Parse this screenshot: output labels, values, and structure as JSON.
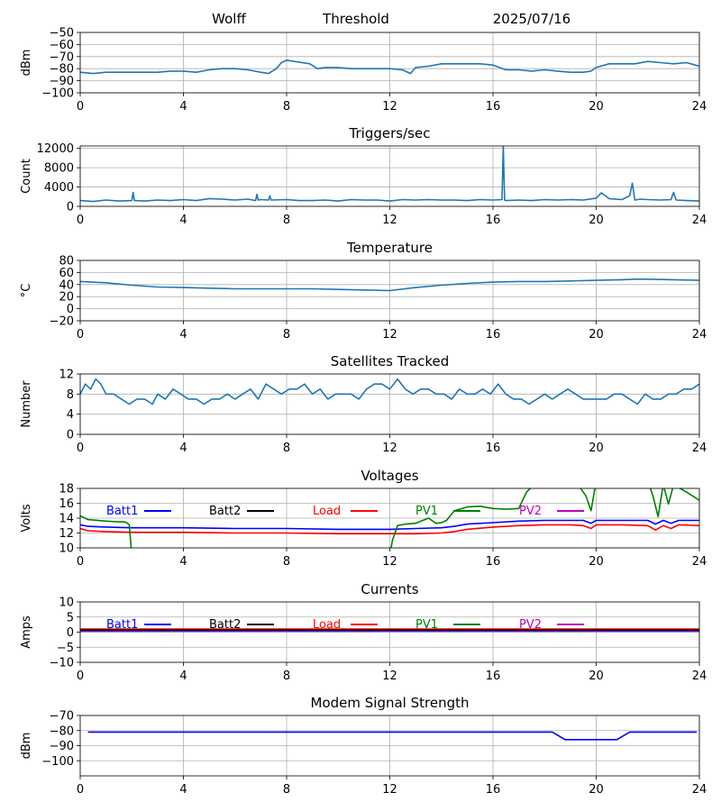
{
  "header": {
    "station": "Wolff",
    "mode": "Threshold",
    "date": "2025/07/16"
  },
  "colors": {
    "default": "#1f77b4",
    "batt1": "#0000ff",
    "batt2": "#000000",
    "load": "#ff0000",
    "pv1": "#008000",
    "pv2": "#bf00bf",
    "modem": "#0000ff"
  },
  "chart_data": [
    {
      "type": "line",
      "title": "",
      "ylabel": "dBm",
      "ylim": [
        -100,
        -50
      ],
      "yticks": [
        -100,
        -90,
        -80,
        -70,
        -60,
        -50
      ],
      "xlim": [
        0,
        24
      ],
      "xticks": [
        0,
        4,
        8,
        12,
        16,
        20,
        24
      ],
      "grid": true,
      "series": [
        {
          "color": "#1f77b4",
          "x": [
            0,
            0.5,
            1,
            2,
            3,
            3.5,
            4,
            4.5,
            5,
            5.5,
            6,
            6.5,
            7,
            7.3,
            7.6,
            7.8,
            8,
            8.3,
            8.6,
            8.9,
            9.2,
            9.5,
            10,
            10.5,
            11,
            11.5,
            12,
            12.5,
            12.8,
            13,
            13.5,
            14,
            14.5,
            15,
            15.5,
            16,
            16.5,
            17,
            17.5,
            18,
            18.5,
            19,
            19.5,
            19.8,
            20,
            20.5,
            21,
            21.5,
            22,
            22.5,
            23,
            23.5,
            24
          ],
          "y": [
            -83,
            -84,
            -83,
            -83,
            -83,
            -82,
            -82,
            -83,
            -81,
            -80,
            -80,
            -81,
            -83,
            -84,
            -80,
            -75,
            -73,
            -74,
            -75,
            -76,
            -80,
            -79,
            -79,
            -80,
            -80,
            -80,
            -80,
            -81,
            -84,
            -79,
            -78,
            -76,
            -76,
            -76,
            -76,
            -77,
            -81,
            -81,
            -82,
            -81,
            -82,
            -83,
            -83,
            -82,
            -79,
            -76,
            -76,
            -76,
            -74,
            -75,
            -76,
            -75,
            -78
          ]
        }
      ]
    },
    {
      "type": "line",
      "title": "Triggers/sec",
      "ylabel": "Count",
      "ylim": [
        0,
        12500
      ],
      "yticks": [
        0,
        4000,
        8000,
        12000
      ],
      "xlim": [
        0,
        24
      ],
      "xticks": [
        0,
        4,
        8,
        12,
        16,
        20,
        24
      ],
      "grid": true,
      "series": [
        {
          "color": "#1f77b4",
          "x": [
            0,
            0.5,
            1,
            1.5,
            2,
            2.05,
            2.1,
            2.5,
            3,
            3.5,
            4,
            4.5,
            5,
            5.5,
            6,
            6.5,
            6.8,
            6.85,
            6.9,
            7,
            7.3,
            7.35,
            7.4,
            8,
            8.5,
            9,
            9.5,
            10,
            10.5,
            11,
            11.5,
            12,
            12.5,
            13,
            13.5,
            14,
            14.5,
            15,
            15.5,
            16,
            16.35,
            16.4,
            16.45,
            16.5,
            17,
            17.5,
            18,
            18.5,
            19,
            19.5,
            20,
            20.2,
            20.5,
            21,
            21.3,
            21.4,
            21.5,
            21.7,
            22,
            22.5,
            22.9,
            23,
            23.1,
            23.5,
            24
          ],
          "y": [
            1200,
            1000,
            1300,
            1100,
            1200,
            2900,
            1200,
            1100,
            1300,
            1200,
            1400,
            1200,
            1600,
            1500,
            1300,
            1500,
            1200,
            2500,
            1300,
            1400,
            1300,
            2200,
            1300,
            1400,
            1200,
            1200,
            1300,
            1100,
            1400,
            1300,
            1300,
            1100,
            1400,
            1300,
            1400,
            1300,
            1300,
            1200,
            1400,
            1300,
            1400,
            12400,
            1300,
            1200,
            1300,
            1200,
            1400,
            1300,
            1400,
            1300,
            1700,
            2800,
            1600,
            1400,
            2200,
            4800,
            1300,
            1500,
            1400,
            1300,
            1400,
            2900,
            1300,
            1200,
            1100
          ]
        }
      ]
    },
    {
      "type": "line",
      "title": "Temperature",
      "ylabel": "°C",
      "ylim": [
        -20,
        80
      ],
      "yticks": [
        -20,
        0,
        20,
        40,
        60,
        80
      ],
      "xlim": [
        0,
        24
      ],
      "xticks": [
        0,
        4,
        8,
        12,
        16,
        20,
        24
      ],
      "grid": true,
      "series": [
        {
          "color": "#1f77b4",
          "x": [
            0,
            1,
            2,
            3,
            4,
            5,
            6,
            7,
            8,
            9,
            10,
            11,
            12,
            13,
            14,
            15,
            16,
            17,
            18,
            19,
            20,
            21,
            21.5,
            22,
            23,
            24
          ],
          "y": [
            45,
            43,
            39,
            36,
            35,
            34,
            33,
            33,
            33,
            33,
            32,
            31,
            30,
            35,
            39,
            42,
            44,
            45,
            45,
            46,
            47,
            48,
            49,
            49,
            48,
            47
          ]
        }
      ]
    },
    {
      "type": "line",
      "title": "Satellites Tracked",
      "ylabel": "Number",
      "ylim": [
        0,
        12
      ],
      "yticks": [
        0,
        4,
        8,
        12
      ],
      "xlim": [
        0,
        24
      ],
      "xticks": [
        0,
        4,
        8,
        12,
        16,
        20,
        24
      ],
      "grid": true,
      "series": [
        {
          "color": "#1f77b4",
          "x": [
            0,
            0.2,
            0.4,
            0.6,
            0.8,
            1,
            1.3,
            1.6,
            1.9,
            2.2,
            2.5,
            2.8,
            3,
            3.3,
            3.6,
            3.9,
            4.2,
            4.5,
            4.8,
            5.1,
            5.4,
            5.7,
            6,
            6.3,
            6.6,
            6.9,
            7.2,
            7.5,
            7.8,
            8.1,
            8.4,
            8.7,
            9,
            9.3,
            9.6,
            9.9,
            10.2,
            10.5,
            10.8,
            11.1,
            11.4,
            11.7,
            12,
            12.3,
            12.6,
            12.9,
            13.2,
            13.5,
            13.8,
            14.1,
            14.4,
            14.7,
            15,
            15.3,
            15.6,
            15.9,
            16.2,
            16.5,
            16.8,
            17.1,
            17.4,
            17.7,
            18,
            18.3,
            18.6,
            18.9,
            19.2,
            19.5,
            19.8,
            20.1,
            20.4,
            20.7,
            21,
            21.3,
            21.6,
            21.9,
            22.2,
            22.5,
            22.8,
            23.1,
            23.4,
            23.7,
            24
          ],
          "y": [
            8,
            10,
            9,
            11,
            10,
            8,
            8,
            7,
            6,
            7,
            7,
            6,
            8,
            7,
            9,
            8,
            7,
            7,
            6,
            7,
            7,
            8,
            7,
            8,
            9,
            7,
            10,
            9,
            8,
            9,
            9,
            10,
            8,
            9,
            7,
            8,
            8,
            8,
            7,
            9,
            10,
            10,
            9,
            11,
            9,
            8,
            9,
            9,
            8,
            8,
            7,
            9,
            8,
            8,
            9,
            8,
            10,
            8,
            7,
            7,
            6,
            7,
            8,
            7,
            8,
            9,
            8,
            7,
            7,
            7,
            7,
            8,
            8,
            7,
            6,
            8,
            7,
            7,
            8,
            8,
            9,
            9,
            10
          ]
        }
      ]
    },
    {
      "type": "line",
      "title": "Voltages",
      "ylabel": "Volts",
      "ylim": [
        10,
        18
      ],
      "yticks": [
        10,
        12,
        14,
        16,
        18
      ],
      "xlim": [
        0,
        24
      ],
      "xticks": [
        0,
        4,
        8,
        12,
        16,
        20,
        24
      ],
      "grid": true,
      "legend": {
        "position": "top",
        "entries": [
          "Batt1",
          "Batt2",
          "Load",
          "PV1",
          "PV2"
        ]
      },
      "series": [
        {
          "name": "Batt1",
          "color": "#0000ff",
          "x": [
            0,
            0.3,
            1,
            2,
            4,
            6,
            8,
            10,
            12,
            13,
            14,
            14.5,
            15,
            16,
            17,
            18,
            19,
            19.5,
            19.8,
            20,
            21,
            22,
            22.3,
            22.6,
            22.9,
            23.2,
            24
          ],
          "y": [
            13.1,
            12.9,
            12.8,
            12.7,
            12.7,
            12.6,
            12.6,
            12.5,
            12.5,
            12.6,
            12.7,
            12.9,
            13.2,
            13.4,
            13.6,
            13.7,
            13.7,
            13.7,
            13.3,
            13.7,
            13.7,
            13.7,
            13.2,
            13.7,
            13.3,
            13.7,
            13.7
          ]
        },
        {
          "name": "Load",
          "color": "#ff0000",
          "x": [
            0,
            0.3,
            1,
            2,
            4,
            6,
            8,
            10,
            12,
            13,
            14,
            14.5,
            15,
            16,
            17,
            18,
            19,
            19.5,
            19.8,
            20,
            21,
            22,
            22.3,
            22.6,
            22.9,
            23.2,
            24
          ],
          "y": [
            12.6,
            12.3,
            12.2,
            12.1,
            12.1,
            12.0,
            12.0,
            11.9,
            11.9,
            11.9,
            12.0,
            12.2,
            12.5,
            12.8,
            13.0,
            13.1,
            13.1,
            13.0,
            12.6,
            13.1,
            13.1,
            13.0,
            12.4,
            13.0,
            12.6,
            13.1,
            13.0
          ]
        },
        {
          "name": "PV1",
          "color": "#008000",
          "x": [
            0,
            0.3,
            1,
            1.5,
            1.7,
            1.8,
            1.9,
            2.0,
            12,
            12.1,
            12.3,
            12.6,
            13,
            13.5,
            13.8,
            14,
            14.2,
            14.5,
            15,
            15.5,
            16,
            16.5,
            17,
            17.3,
            17.6,
            18,
            19,
            19.3,
            19.6,
            19.8,
            20,
            22,
            22.2,
            22.4,
            22.6,
            22.8,
            23,
            23.5,
            24
          ],
          "y": [
            14.3,
            13.8,
            13.6,
            13.5,
            13.5,
            13.4,
            13.1,
            9,
            9,
            11,
            13.0,
            13.2,
            13.3,
            14.0,
            13.3,
            13.4,
            13.7,
            15.0,
            15.5,
            15.6,
            15.3,
            15.2,
            15.3,
            17.5,
            18.5,
            19,
            19,
            18.5,
            17,
            15.0,
            19,
            19,
            17,
            14.2,
            18.5,
            15.9,
            18.5,
            17.5,
            16.4
          ]
        }
      ]
    },
    {
      "type": "line",
      "title": "Currents",
      "ylabel": "Amps",
      "ylim": [
        -10,
        10
      ],
      "yticks": [
        -10,
        -5,
        0,
        5,
        10
      ],
      "xlim": [
        0,
        24
      ],
      "xticks": [
        0,
        4,
        8,
        12,
        16,
        20,
        24
      ],
      "grid": true,
      "legend": {
        "position": "top",
        "entries": [
          "Batt1",
          "Batt2",
          "Load",
          "PV1",
          "PV2"
        ]
      },
      "series": [
        {
          "name": "Batt1",
          "color": "#0000ff",
          "x": [
            0,
            24
          ],
          "y": [
            0.3,
            0.3
          ]
        },
        {
          "name": "PV2",
          "color": "#bf00bf",
          "x": [
            0,
            24
          ],
          "y": [
            0.5,
            0.5
          ]
        },
        {
          "name": "Load",
          "color": "#ff0000",
          "x": [
            0,
            24
          ],
          "y": [
            1.0,
            1.0
          ]
        },
        {
          "name": "Batt2",
          "color": "#000000",
          "x": [
            0,
            24
          ],
          "y": [
            0.7,
            0.7
          ]
        }
      ]
    },
    {
      "type": "line",
      "title": "Modem Signal Strength",
      "ylabel": "dBm",
      "ylim": [
        -110,
        -70
      ],
      "yticks": [
        -100,
        -90,
        -80,
        -70
      ],
      "xlim": [
        0,
        24
      ],
      "xticks": [
        0,
        4,
        8,
        12,
        16,
        20,
        24
      ],
      "grid": true,
      "series": [
        {
          "color": "#0000ff",
          "x": [
            0.3,
            18.3,
            18.8,
            20.8,
            21.3,
            23.9
          ],
          "y": [
            -81,
            -81,
            -86,
            -86,
            -81,
            -81
          ]
        }
      ]
    }
  ]
}
